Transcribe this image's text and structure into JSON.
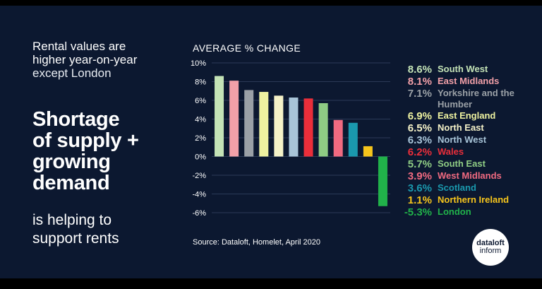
{
  "intro": {
    "line1": "Rental values are",
    "line2": "higher year-on-year",
    "line3": "except London"
  },
  "headline": {
    "line1": "Shortage",
    "line2": "of supply +",
    "line3": "growing",
    "line4": "demand"
  },
  "subline": {
    "line1": "is helping to",
    "line2": "support rents"
  },
  "source": "Source: Dataloft, Homelet, April 2020",
  "logo": {
    "line1": "dataloft",
    "line2": "inform"
  },
  "chart_data": {
    "type": "bar",
    "title": "AVERAGE % CHANGE",
    "ylim": [
      -6,
      10
    ],
    "ticks": [
      10,
      8,
      6,
      4,
      2,
      0,
      -2,
      -4,
      -6
    ],
    "tick_labels": [
      "10%",
      "8%",
      "6%",
      "4%",
      "2%",
      "0%",
      "-2%",
      "-4%",
      "-6%"
    ],
    "grid": true,
    "legend_position": "right",
    "bars": [
      {
        "label": "South West",
        "value": 8.6,
        "value_label": "8.6%",
        "color": "#c4e3b6"
      },
      {
        "label": "East Midlands",
        "value": 8.1,
        "value_label": "8.1%",
        "color": "#f2a0a8"
      },
      {
        "label": "Yorkshire and the Humber",
        "value": 7.1,
        "value_label": "7.1%",
        "color": "#9aa0a6"
      },
      {
        "label": "East England",
        "value": 6.9,
        "value_label": "6.9%",
        "color": "#eef2a0"
      },
      {
        "label": "North East",
        "value": 6.5,
        "value_label": "6.5%",
        "color": "#f5f2c8"
      },
      {
        "label": "North West",
        "value": 6.3,
        "value_label": "6.3%",
        "color": "#a8c4d8"
      },
      {
        "label": "Wales",
        "value": 6.2,
        "value_label": "6.2%",
        "color": "#ea2e3a"
      },
      {
        "label": "South East",
        "value": 5.7,
        "value_label": "5.7%",
        "color": "#8fcc84"
      },
      {
        "label": "West Midlands",
        "value": 3.9,
        "value_label": "3.9%",
        "color": "#f06a80"
      },
      {
        "label": "Scotland",
        "value": 3.6,
        "value_label": "3.6%",
        "color": "#1a98ad"
      },
      {
        "label": "Northern Ireland",
        "value": 1.1,
        "value_label": "1.1%",
        "color": "#f6c51c"
      },
      {
        "label": "London",
        "value": -5.3,
        "value_label": "-5.3%",
        "color": "#21b24a"
      }
    ]
  }
}
